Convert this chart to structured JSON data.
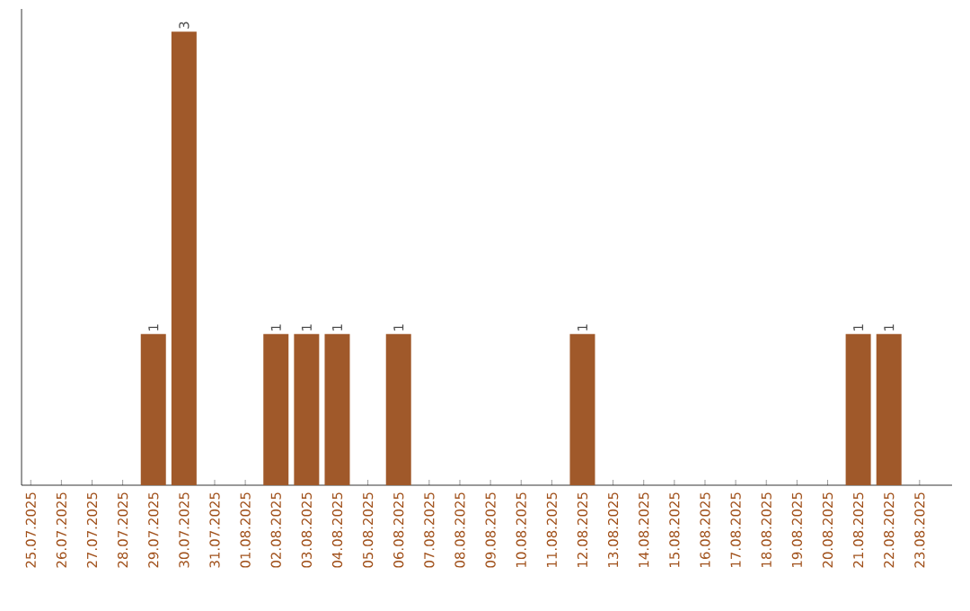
{
  "chart_data": {
    "type": "bar",
    "categories": [
      "25.07.2025",
      "26.07.2025",
      "27.07.2025",
      "28.07.2025",
      "29.07.2025",
      "30.07.2025",
      "31.07.2025",
      "01.08.2025",
      "02.08.2025",
      "03.08.2025",
      "04.08.2025",
      "05.08.2025",
      "06.08.2025",
      "07.08.2025",
      "08.08.2025",
      "09.08.2025",
      "10.08.2025",
      "11.08.2025",
      "12.08.2025",
      "13.08.2025",
      "14.08.2025",
      "15.08.2025",
      "16.08.2025",
      "17.08.2025",
      "18.08.2025",
      "19.08.2025",
      "20.08.2025",
      "21.08.2025",
      "22.08.2025",
      "23.08.2025"
    ],
    "values": [
      0,
      0,
      0,
      0,
      1,
      3,
      0,
      0,
      1,
      1,
      1,
      0,
      1,
      0,
      0,
      0,
      0,
      0,
      1,
      0,
      0,
      0,
      0,
      0,
      0,
      0,
      0,
      1,
      1,
      0
    ],
    "value_labels": [
      null,
      null,
      null,
      null,
      "1",
      "3",
      null,
      null,
      "1",
      "1",
      "1",
      null,
      "1",
      null,
      null,
      null,
      null,
      null,
      "1",
      null,
      null,
      null,
      null,
      null,
      null,
      null,
      null,
      "1",
      "1",
      null
    ],
    "color": "#a0592a",
    "ylim": [
      0,
      3.15
    ],
    "tick_labels": "x"
  }
}
